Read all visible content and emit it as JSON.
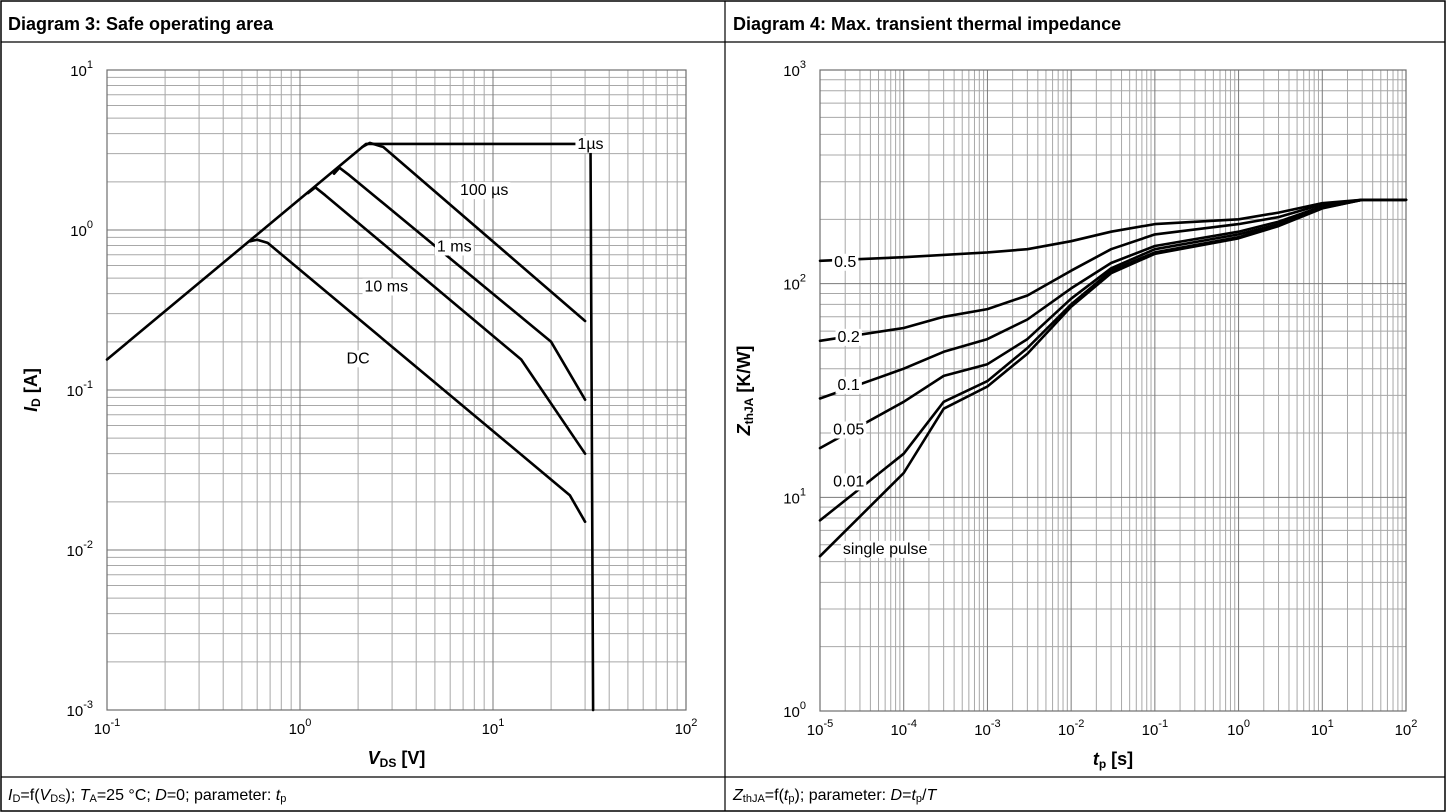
{
  "panels": {
    "left": {
      "title": "Diagram 3: Safe operating area",
      "caption": {
        "a": "I",
        "a_sub": "D",
        "b": "=f(",
        "c": "V",
        "c_sub": "DS",
        "d": "); ",
        "e": "T",
        "e_sub": "A",
        "f": "=25 °C; ",
        "g": "D",
        "h": "=0; parameter: ",
        "i": "t",
        "i_sub": "p"
      }
    },
    "right": {
      "title": "Diagram 4: Max. transient thermal impedance",
      "caption": {
        "a": "Z",
        "a_sub": "thJA",
        "b": "=f(",
        "c": "t",
        "c_sub": "p",
        "d": "); parameter: ",
        "e": "D",
        "f": "=",
        "g": "t",
        "g_sub": "p",
        "h": "/",
        "i": "T"
      }
    }
  },
  "chart_data": [
    {
      "type": "line",
      "title": "Diagram 3: Safe operating area",
      "x_scale": "log",
      "y_scale": "log",
      "xlim": [
        0.1,
        100
      ],
      "ylim": [
        0.001,
        10
      ],
      "grid": true,
      "xlabel": {
        "main": "V",
        "sub": "DS",
        "unit": " [V]"
      },
      "ylabel": {
        "main": "I",
        "sub": "D",
        "unit": " [A]"
      },
      "x_ticks": [
        {
          "base": "10",
          "exp": "-1",
          "v": 0.1
        },
        {
          "base": "10",
          "exp": "0",
          "v": 1
        },
        {
          "base": "10",
          "exp": "1",
          "v": 10
        },
        {
          "base": "10",
          "exp": "2",
          "v": 100
        }
      ],
      "y_ticks": [
        {
          "base": "10",
          "exp": "-3",
          "v": 0.001
        },
        {
          "base": "10",
          "exp": "-2",
          "v": 0.01
        },
        {
          "base": "10",
          "exp": "-1",
          "v": 0.1
        },
        {
          "base": "10",
          "exp": "0",
          "v": 1
        },
        {
          "base": "10",
          "exp": "1",
          "v": 10
        }
      ],
      "series": [
        {
          "name": "1µs",
          "label_at": [
            32,
            3.5
          ],
          "x": [
            0.1,
            2.2,
            32,
            33
          ],
          "y": [
            0.155,
            3.45,
            3.45,
            0.001
          ]
        },
        {
          "name": "100 µs",
          "label_at": [
            9,
            1.8
          ],
          "x": [
            2.1,
            2.3,
            2.7,
            30
          ],
          "y": [
            3.3,
            3.5,
            3.3,
            0.27
          ]
        },
        {
          "name": "1 ms",
          "label_at": [
            6.3,
            0.8
          ],
          "x": [
            1.5,
            1.6,
            1.8,
            20,
            30
          ],
          "y": [
            2.25,
            2.45,
            2.2,
            0.2,
            0.087
          ]
        },
        {
          "name": "10 ms",
          "label_at": [
            2.8,
            0.45
          ],
          "x": [
            1.1,
            1.2,
            1.35,
            14,
            30
          ],
          "y": [
            1.7,
            1.85,
            1.65,
            0.155,
            0.04
          ]
        },
        {
          "name": "DC",
          "label_at": [
            2.0,
            0.16
          ],
          "x": [
            0.55,
            0.6,
            0.68,
            25,
            30
          ],
          "y": [
            0.85,
            0.87,
            0.83,
            0.022,
            0.015
          ]
        }
      ]
    },
    {
      "type": "line",
      "title": "Diagram 4: Max. transient thermal impedance",
      "x_scale": "log",
      "y_scale": "log",
      "xlim": [
        1e-05,
        100
      ],
      "ylim": [
        1,
        1000
      ],
      "grid": true,
      "xlabel": {
        "main": "t",
        "sub": "p",
        "unit": " [s]"
      },
      "ylabel": {
        "main": "Z",
        "sub": "thJA",
        "unit": " [K/W]"
      },
      "x_ticks": [
        {
          "base": "10",
          "exp": "-5",
          "v": 1e-05
        },
        {
          "base": "10",
          "exp": "-4",
          "v": 0.0001
        },
        {
          "base": "10",
          "exp": "-3",
          "v": 0.001
        },
        {
          "base": "10",
          "exp": "-2",
          "v": 0.01
        },
        {
          "base": "10",
          "exp": "-1",
          "v": 0.1
        },
        {
          "base": "10",
          "exp": "0",
          "v": 1
        },
        {
          "base": "10",
          "exp": "1",
          "v": 10
        },
        {
          "base": "10",
          "exp": "2",
          "v": 100
        }
      ],
      "y_ticks": [
        {
          "base": "10",
          "exp": "0",
          "v": 1
        },
        {
          "base": "10",
          "exp": "1",
          "v": 10
        },
        {
          "base": "10",
          "exp": "2",
          "v": 100
        },
        {
          "base": "10",
          "exp": "3",
          "v": 1000
        }
      ],
      "series": [
        {
          "name": "0.5",
          "label_at": [
            2e-05,
            128
          ],
          "x": [
            1e-05,
            0.0001,
            0.001,
            0.003,
            0.01,
            0.03,
            0.1,
            1,
            3,
            10,
            30,
            100
          ],
          "y": [
            128,
            133,
            140,
            145,
            158,
            175,
            190,
            200,
            215,
            238,
            247,
            247
          ]
        },
        {
          "name": "0.2",
          "label_at": [
            2.2e-05,
            57
          ],
          "x": [
            1e-05,
            0.0001,
            0.0003,
            0.001,
            0.003,
            0.01,
            0.03,
            0.1,
            1,
            3,
            10,
            30,
            100
          ],
          "y": [
            54,
            62,
            70,
            76,
            88,
            115,
            145,
            170,
            190,
            205,
            235,
            247,
            247
          ]
        },
        {
          "name": "0.1",
          "label_at": [
            2.2e-05,
            34
          ],
          "x": [
            1e-05,
            0.0001,
            0.0003,
            0.001,
            0.003,
            0.01,
            0.03,
            0.1,
            1,
            3,
            10,
            30,
            100
          ],
          "y": [
            29,
            40,
            48,
            55,
            68,
            95,
            125,
            150,
            175,
            195,
            230,
            247,
            247
          ]
        },
        {
          "name": "0.05",
          "label_at": [
            2.2e-05,
            21
          ],
          "x": [
            1e-05,
            0.0001,
            0.0003,
            0.001,
            0.003,
            0.01,
            0.03,
            0.1,
            1,
            3,
            10,
            30,
            100
          ],
          "y": [
            17,
            28,
            37,
            42,
            55,
            85,
            118,
            145,
            170,
            190,
            228,
            247,
            247
          ]
        },
        {
          "name": "0.01",
          "label_at": [
            2.2e-05,
            12
          ],
          "x": [
            1e-05,
            0.0001,
            0.0003,
            0.001,
            0.003,
            0.01,
            0.03,
            0.1,
            1,
            3,
            10,
            30,
            100
          ],
          "y": [
            7.8,
            16,
            28,
            35,
            50,
            80,
            115,
            140,
            165,
            188,
            226,
            247,
            247
          ]
        },
        {
          "name": "single pulse",
          "label_at": [
            6e-05,
            5.8
          ],
          "x": [
            1e-05,
            0.0001,
            0.0003,
            0.001,
            0.003,
            0.01,
            0.03,
            0.1,
            1,
            3,
            10,
            30,
            100
          ],
          "y": [
            5.3,
            13,
            26,
            33,
            47,
            78,
            112,
            138,
            163,
            186,
            225,
            247,
            247
          ]
        }
      ]
    }
  ]
}
